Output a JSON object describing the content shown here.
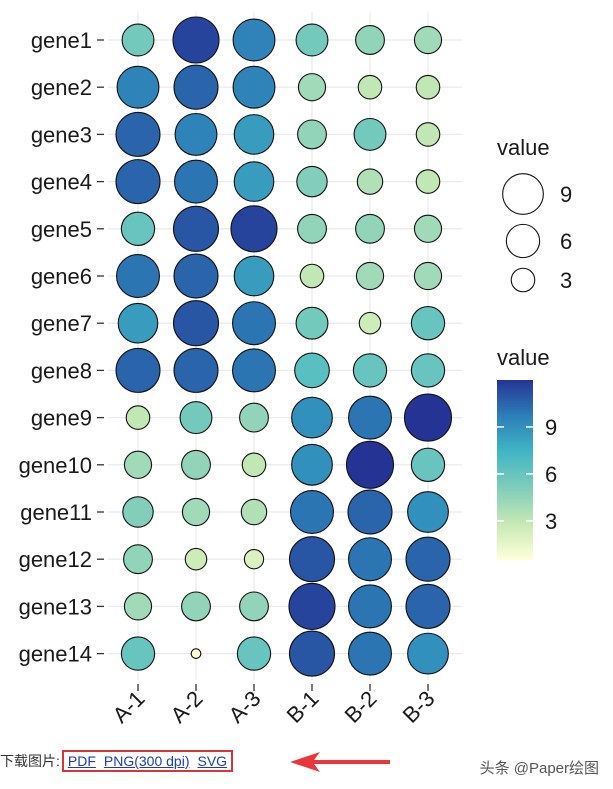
{
  "chart_data": {
    "type": "bubble",
    "genes": [
      "gene1",
      "gene2",
      "gene3",
      "gene4",
      "gene5",
      "gene6",
      "gene7",
      "gene8",
      "gene9",
      "gene10",
      "gene11",
      "gene12",
      "gene13",
      "gene14"
    ],
    "samples": [
      "A-1",
      "A-2",
      "A-3",
      "B-1",
      "B-2",
      "B-3"
    ],
    "values": [
      [
        5.5,
        11.5,
        9.5,
        5.5,
        4.5,
        4.0
      ],
      [
        9.5,
        10.5,
        9.5,
        4.0,
        3.0,
        3.0
      ],
      [
        10.5,
        9.5,
        8.5,
        4.5,
        5.5,
        3.0
      ],
      [
        10.5,
        10.0,
        8.5,
        5.0,
        3.5,
        3.0
      ],
      [
        6.0,
        11.0,
        11.5,
        4.5,
        4.5,
        4.0
      ],
      [
        10.0,
        10.5,
        8.5,
        3.0,
        4.0,
        4.0
      ],
      [
        8.5,
        11.0,
        10.0,
        5.5,
        2.5,
        6.0
      ],
      [
        10.5,
        10.5,
        10.0,
        6.5,
        6.0,
        6.0
      ],
      [
        3.0,
        5.5,
        4.5,
        9.0,
        10.0,
        12.0
      ],
      [
        4.0,
        4.5,
        3.0,
        9.0,
        12.0,
        6.0
      ],
      [
        5.0,
        4.0,
        3.5,
        10.0,
        10.5,
        9.0
      ],
      [
        4.5,
        2.5,
        2.0,
        11.0,
        10.0,
        10.5
      ],
      [
        4.0,
        4.5,
        4.5,
        11.5,
        10.0,
        10.5
      ],
      [
        6.0,
        0.5,
        6.0,
        11.0,
        10.0,
        9.0
      ]
    ],
    "size_legend": {
      "title": "value",
      "breaks": [
        9,
        6,
        3
      ]
    },
    "color_legend": {
      "title": "value",
      "breaks": [
        9,
        6,
        3
      ],
      "range": [
        0.5,
        12
      ],
      "colors": [
        "#ffffd9",
        "#c7e9b4",
        "#7fcdbb",
        "#41b6c4",
        "#2c7fb8",
        "#253494"
      ]
    },
    "grid": true
  },
  "footer": {
    "download_label": "下载图片:",
    "links": [
      "PDF",
      "PNG(300 dpi)",
      "SVG"
    ],
    "watermark": "头条 @Paper绘图"
  },
  "colors": {
    "highlight_border": "#d9343a",
    "link": "#1a3fb5",
    "arrow": "#e8363c"
  }
}
